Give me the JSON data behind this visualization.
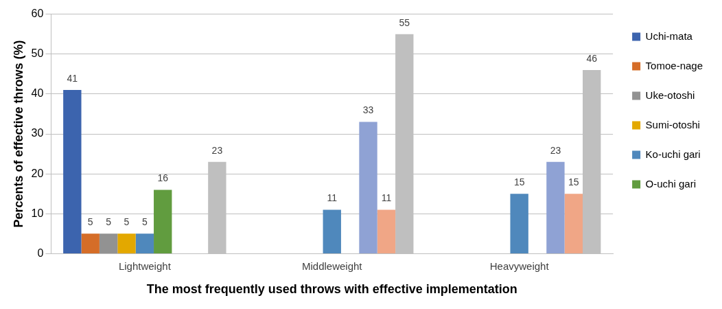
{
  "chart_data": {
    "type": "bar",
    "xlabel": "The most frequently used throws with effective implementation",
    "ylabel": "Percents of effective throws (%)",
    "categories": [
      "Lightweight",
      "Middleweight",
      "Heavyweight"
    ],
    "series": [
      {
        "name": "Uchi-mata",
        "color": "#3c64ae",
        "values": [
          41,
          null,
          null
        ]
      },
      {
        "name": "Tomoe-nage",
        "color": "#d56d28",
        "values": [
          5,
          null,
          null
        ]
      },
      {
        "name": "Uke-otoshi",
        "color": "#929292",
        "values": [
          5,
          null,
          null
        ]
      },
      {
        "name": "Sumi-otoshi",
        "color": "#e3a800",
        "values": [
          5,
          null,
          null
        ]
      },
      {
        "name": "Ko-uchi gari",
        "color": "#4f88bc",
        "values": [
          5,
          11,
          15
        ]
      },
      {
        "name": "O-uchi gari",
        "color": "#619c3f",
        "values": [
          16,
          null,
          null
        ]
      },
      {
        "color": "#8fa2d4",
        "values": [
          null,
          33,
          23
        ]
      },
      {
        "color": "#f0a686",
        "values": [
          null,
          11,
          15
        ]
      },
      {
        "color": "#bfbfbf",
        "values": [
          23,
          55,
          46
        ]
      }
    ],
    "ylim": [
      0,
      60
    ],
    "yticks": [
      0,
      10,
      20,
      30,
      40,
      50,
      60
    ],
    "grid": "y",
    "legend": "right",
    "data_labels": true
  }
}
